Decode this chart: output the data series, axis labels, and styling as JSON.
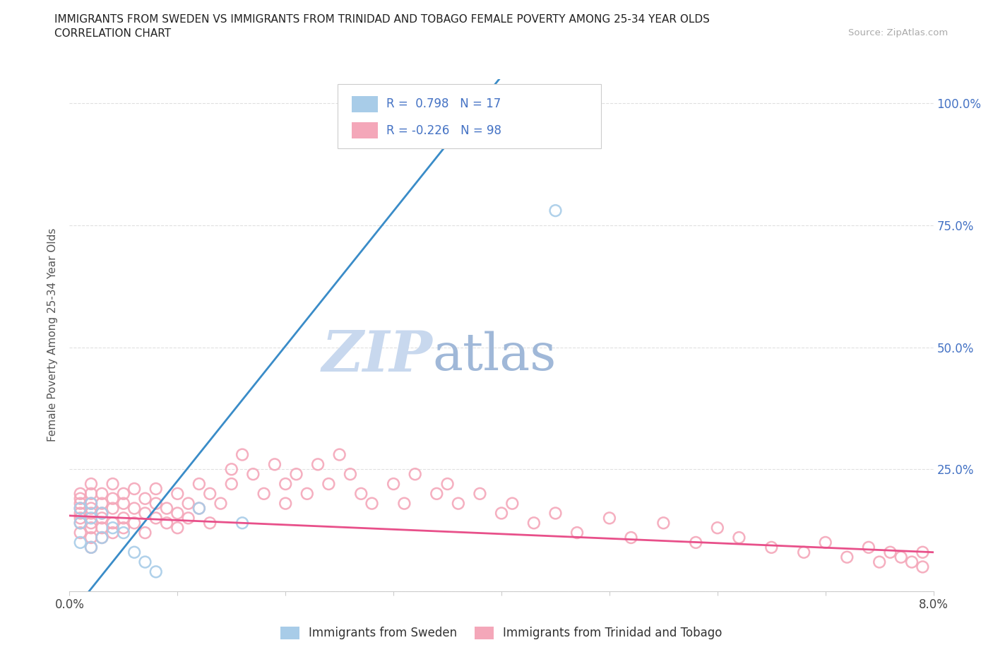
{
  "title_line1": "IMMIGRANTS FROM SWEDEN VS IMMIGRANTS FROM TRINIDAD AND TOBAGO FEMALE POVERTY AMONG 25-34 YEAR OLDS",
  "title_line2": "CORRELATION CHART",
  "source_text": "Source: ZipAtlas.com",
  "ylabel": "Female Poverty Among 25-34 Year Olds",
  "xlim": [
    0.0,
    0.08
  ],
  "ylim": [
    0.0,
    1.05
  ],
  "xtick_positions": [
    0.0,
    0.01,
    0.02,
    0.03,
    0.04,
    0.05,
    0.06,
    0.07,
    0.08
  ],
  "xtick_labels": [
    "0.0%",
    "",
    "",
    "",
    "",
    "",
    "",
    "",
    "8.0%"
  ],
  "ytick_positions": [
    0.0,
    0.25,
    0.5,
    0.75,
    1.0
  ],
  "ytick_labels_right": [
    "",
    "25.0%",
    "50.0%",
    "75.0%",
    "100.0%"
  ],
  "r_sweden": 0.798,
  "n_sweden": 17,
  "r_tt": -0.226,
  "n_tt": 98,
  "sweden_color": "#a8cce8",
  "tt_color": "#f4a7b9",
  "sweden_line_color": "#3a8cc8",
  "tt_line_color": "#e8508a",
  "watermark_zip": "ZIP",
  "watermark_atlas": "atlas",
  "watermark_color_zip": "#c8d8ee",
  "watermark_color_atlas": "#a0b8d8",
  "legend_sweden": "Immigrants from Sweden",
  "legend_tt": "Immigrants from Trinidad and Tobago",
  "sweden_x": [
    0.001,
    0.001,
    0.001,
    0.002,
    0.002,
    0.002,
    0.003,
    0.003,
    0.004,
    0.005,
    0.006,
    0.007,
    0.008,
    0.012,
    0.016,
    0.035,
    0.045
  ],
  "sweden_y": [
    0.1,
    0.14,
    0.17,
    0.09,
    0.15,
    0.18,
    0.11,
    0.16,
    0.13,
    0.12,
    0.08,
    0.06,
    0.04,
    0.17,
    0.14,
    1.0,
    0.78
  ],
  "tt_x": [
    0.001,
    0.001,
    0.001,
    0.001,
    0.001,
    0.001,
    0.001,
    0.001,
    0.002,
    0.002,
    0.002,
    0.002,
    0.002,
    0.002,
    0.002,
    0.002,
    0.002,
    0.003,
    0.003,
    0.003,
    0.003,
    0.003,
    0.003,
    0.004,
    0.004,
    0.004,
    0.004,
    0.004,
    0.005,
    0.005,
    0.005,
    0.005,
    0.006,
    0.006,
    0.006,
    0.007,
    0.007,
    0.007,
    0.008,
    0.008,
    0.008,
    0.009,
    0.009,
    0.01,
    0.01,
    0.01,
    0.011,
    0.011,
    0.012,
    0.012,
    0.013,
    0.013,
    0.014,
    0.015,
    0.015,
    0.016,
    0.017,
    0.018,
    0.019,
    0.02,
    0.02,
    0.021,
    0.022,
    0.023,
    0.024,
    0.025,
    0.026,
    0.027,
    0.028,
    0.03,
    0.031,
    0.032,
    0.034,
    0.035,
    0.036,
    0.038,
    0.04,
    0.041,
    0.043,
    0.045,
    0.047,
    0.05,
    0.052,
    0.055,
    0.058,
    0.06,
    0.062,
    0.065,
    0.068,
    0.07,
    0.072,
    0.074,
    0.075,
    0.076,
    0.077,
    0.078,
    0.079,
    0.079
  ],
  "tt_y": [
    0.14,
    0.16,
    0.18,
    0.2,
    0.12,
    0.15,
    0.17,
    0.19,
    0.13,
    0.16,
    0.18,
    0.2,
    0.22,
    0.14,
    0.11,
    0.09,
    0.17,
    0.15,
    0.18,
    0.2,
    0.13,
    0.16,
    0.11,
    0.19,
    0.17,
    0.22,
    0.14,
    0.12,
    0.18,
    0.15,
    0.2,
    0.13,
    0.17,
    0.21,
    0.14,
    0.19,
    0.16,
    0.12,
    0.18,
    0.15,
    0.21,
    0.14,
    0.17,
    0.2,
    0.16,
    0.13,
    0.18,
    0.15,
    0.22,
    0.17,
    0.2,
    0.14,
    0.18,
    0.25,
    0.22,
    0.28,
    0.24,
    0.2,
    0.26,
    0.22,
    0.18,
    0.24,
    0.2,
    0.26,
    0.22,
    0.28,
    0.24,
    0.2,
    0.18,
    0.22,
    0.18,
    0.24,
    0.2,
    0.22,
    0.18,
    0.2,
    0.16,
    0.18,
    0.14,
    0.16,
    0.12,
    0.15,
    0.11,
    0.14,
    0.1,
    0.13,
    0.11,
    0.09,
    0.08,
    0.1,
    0.07,
    0.09,
    0.06,
    0.08,
    0.07,
    0.06,
    0.05,
    0.08
  ]
}
